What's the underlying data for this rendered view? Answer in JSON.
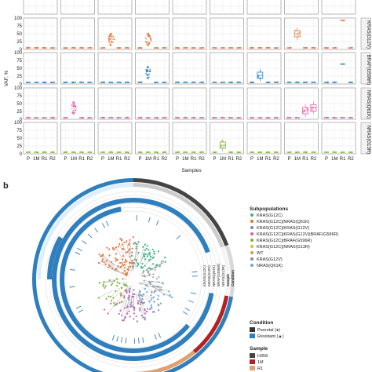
{
  "panel_a": {
    "y_axis_label": "VAF, %",
    "x_axis_label": "Samples",
    "row_labels": [
      "KRAS(G12V)",
      "BRAF(G596R)",
      "NRAS(Q61K)",
      "NRAS(G13R)"
    ],
    "y_ticks": [
      "100",
      "75",
      "50",
      "25",
      "0"
    ],
    "x_tick_labels": [
      "P",
      "1M",
      "R1",
      "R2"
    ],
    "n_columns": 9
  },
  "panel_b": {
    "letter": "b",
    "ring_labels": [
      "KRAS(G12C)",
      "KRAS(G12V)",
      "NRAS(Q61K)",
      "BRAF(G596R)",
      "NRAS(G13R)",
      "Sample",
      "Condition"
    ],
    "legend": {
      "subpopulations": {
        "title": "Subpopulations",
        "items": [
          {
            "label": "KRAS(G12C)",
            "color": "#3bb38a"
          },
          {
            "label": "KRAS(G12C)|NRAS(Q61K)",
            "color": "#e8743b"
          },
          {
            "label": "KRAS(G12C)|KRAS(G12V)",
            "color": "#8a7cc3"
          },
          {
            "label": "KRAS(G12C)|KRAS(G12V)|BRAF(G596R)",
            "color": "#e15aa4"
          },
          {
            "label": "KRAS(G12C)|BRAF(G596R)",
            "color": "#7fb23a"
          },
          {
            "label": "KRAS(G12C)|NRAS(G13R)",
            "color": "#e0c020"
          },
          {
            "label": "WT",
            "color": "#c8a050"
          },
          {
            "label": "KRAS(G12V)",
            "color": "#8c8c8c"
          },
          {
            "label": "NRAS(Q61K)",
            "color": "#6ba8d8"
          }
        ]
      },
      "condition": {
        "title": "Condition",
        "items": [
          {
            "label": "Parental (●)",
            "color": "#333333"
          },
          {
            "label": "Resistant (▲)",
            "color": "#2f7fbf"
          }
        ]
      },
      "sample": {
        "title": "Sample",
        "items": [
          {
            "label": "H358",
            "color": "#444444"
          },
          {
            "label": "1M",
            "color": "#b22222"
          },
          {
            "label": "R1",
            "color": "#e0a070"
          }
        ]
      }
    }
  },
  "colors": {
    "green": "#3bb38a",
    "orange": "#e8743b",
    "pink": "#e15aa4",
    "blue": "#2f7fbf",
    "dark": "#444444",
    "light_green": "#7fb23a"
  }
}
